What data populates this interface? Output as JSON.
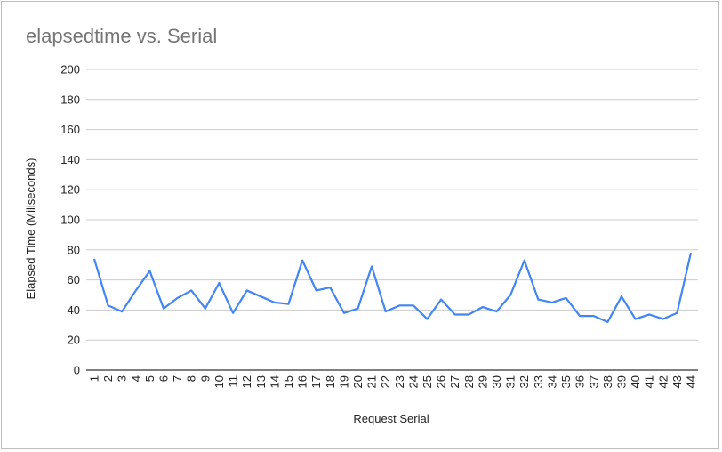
{
  "chart_data": {
    "type": "line",
    "title": "elapsedtime vs. Serial",
    "xlabel": "Request Serial",
    "ylabel": "Elapsed Time (Miliseconds)",
    "ylim": [
      0,
      200
    ],
    "yticks": [
      0,
      20,
      40,
      60,
      80,
      100,
      120,
      140,
      160,
      180,
      200
    ],
    "grid": true,
    "legend": "none",
    "line_color": "#4285f4",
    "categories": [
      "1",
      "2",
      "3",
      "4",
      "5",
      "6",
      "7",
      "8",
      "9",
      "10",
      "11",
      "12",
      "13",
      "14",
      "15",
      "16",
      "17",
      "18",
      "19",
      "20",
      "21",
      "22",
      "23",
      "24",
      "25",
      "26",
      "27",
      "28",
      "29",
      "30",
      "31",
      "32",
      "33",
      "34",
      "35",
      "36",
      "37",
      "38",
      "39",
      "40",
      "41",
      "42",
      "43",
      "44"
    ],
    "series": [
      {
        "values": [
          74,
          43,
          39,
          53,
          66,
          41,
          48,
          53,
          41,
          58,
          38,
          53,
          49,
          45,
          44,
          73,
          53,
          55,
          38,
          41,
          69,
          39,
          43,
          43,
          34,
          47,
          37,
          37,
          42,
          39,
          50,
          73,
          47,
          45,
          48,
          36,
          36,
          32,
          49,
          34,
          37,
          34,
          38,
          78
        ]
      }
    ]
  }
}
